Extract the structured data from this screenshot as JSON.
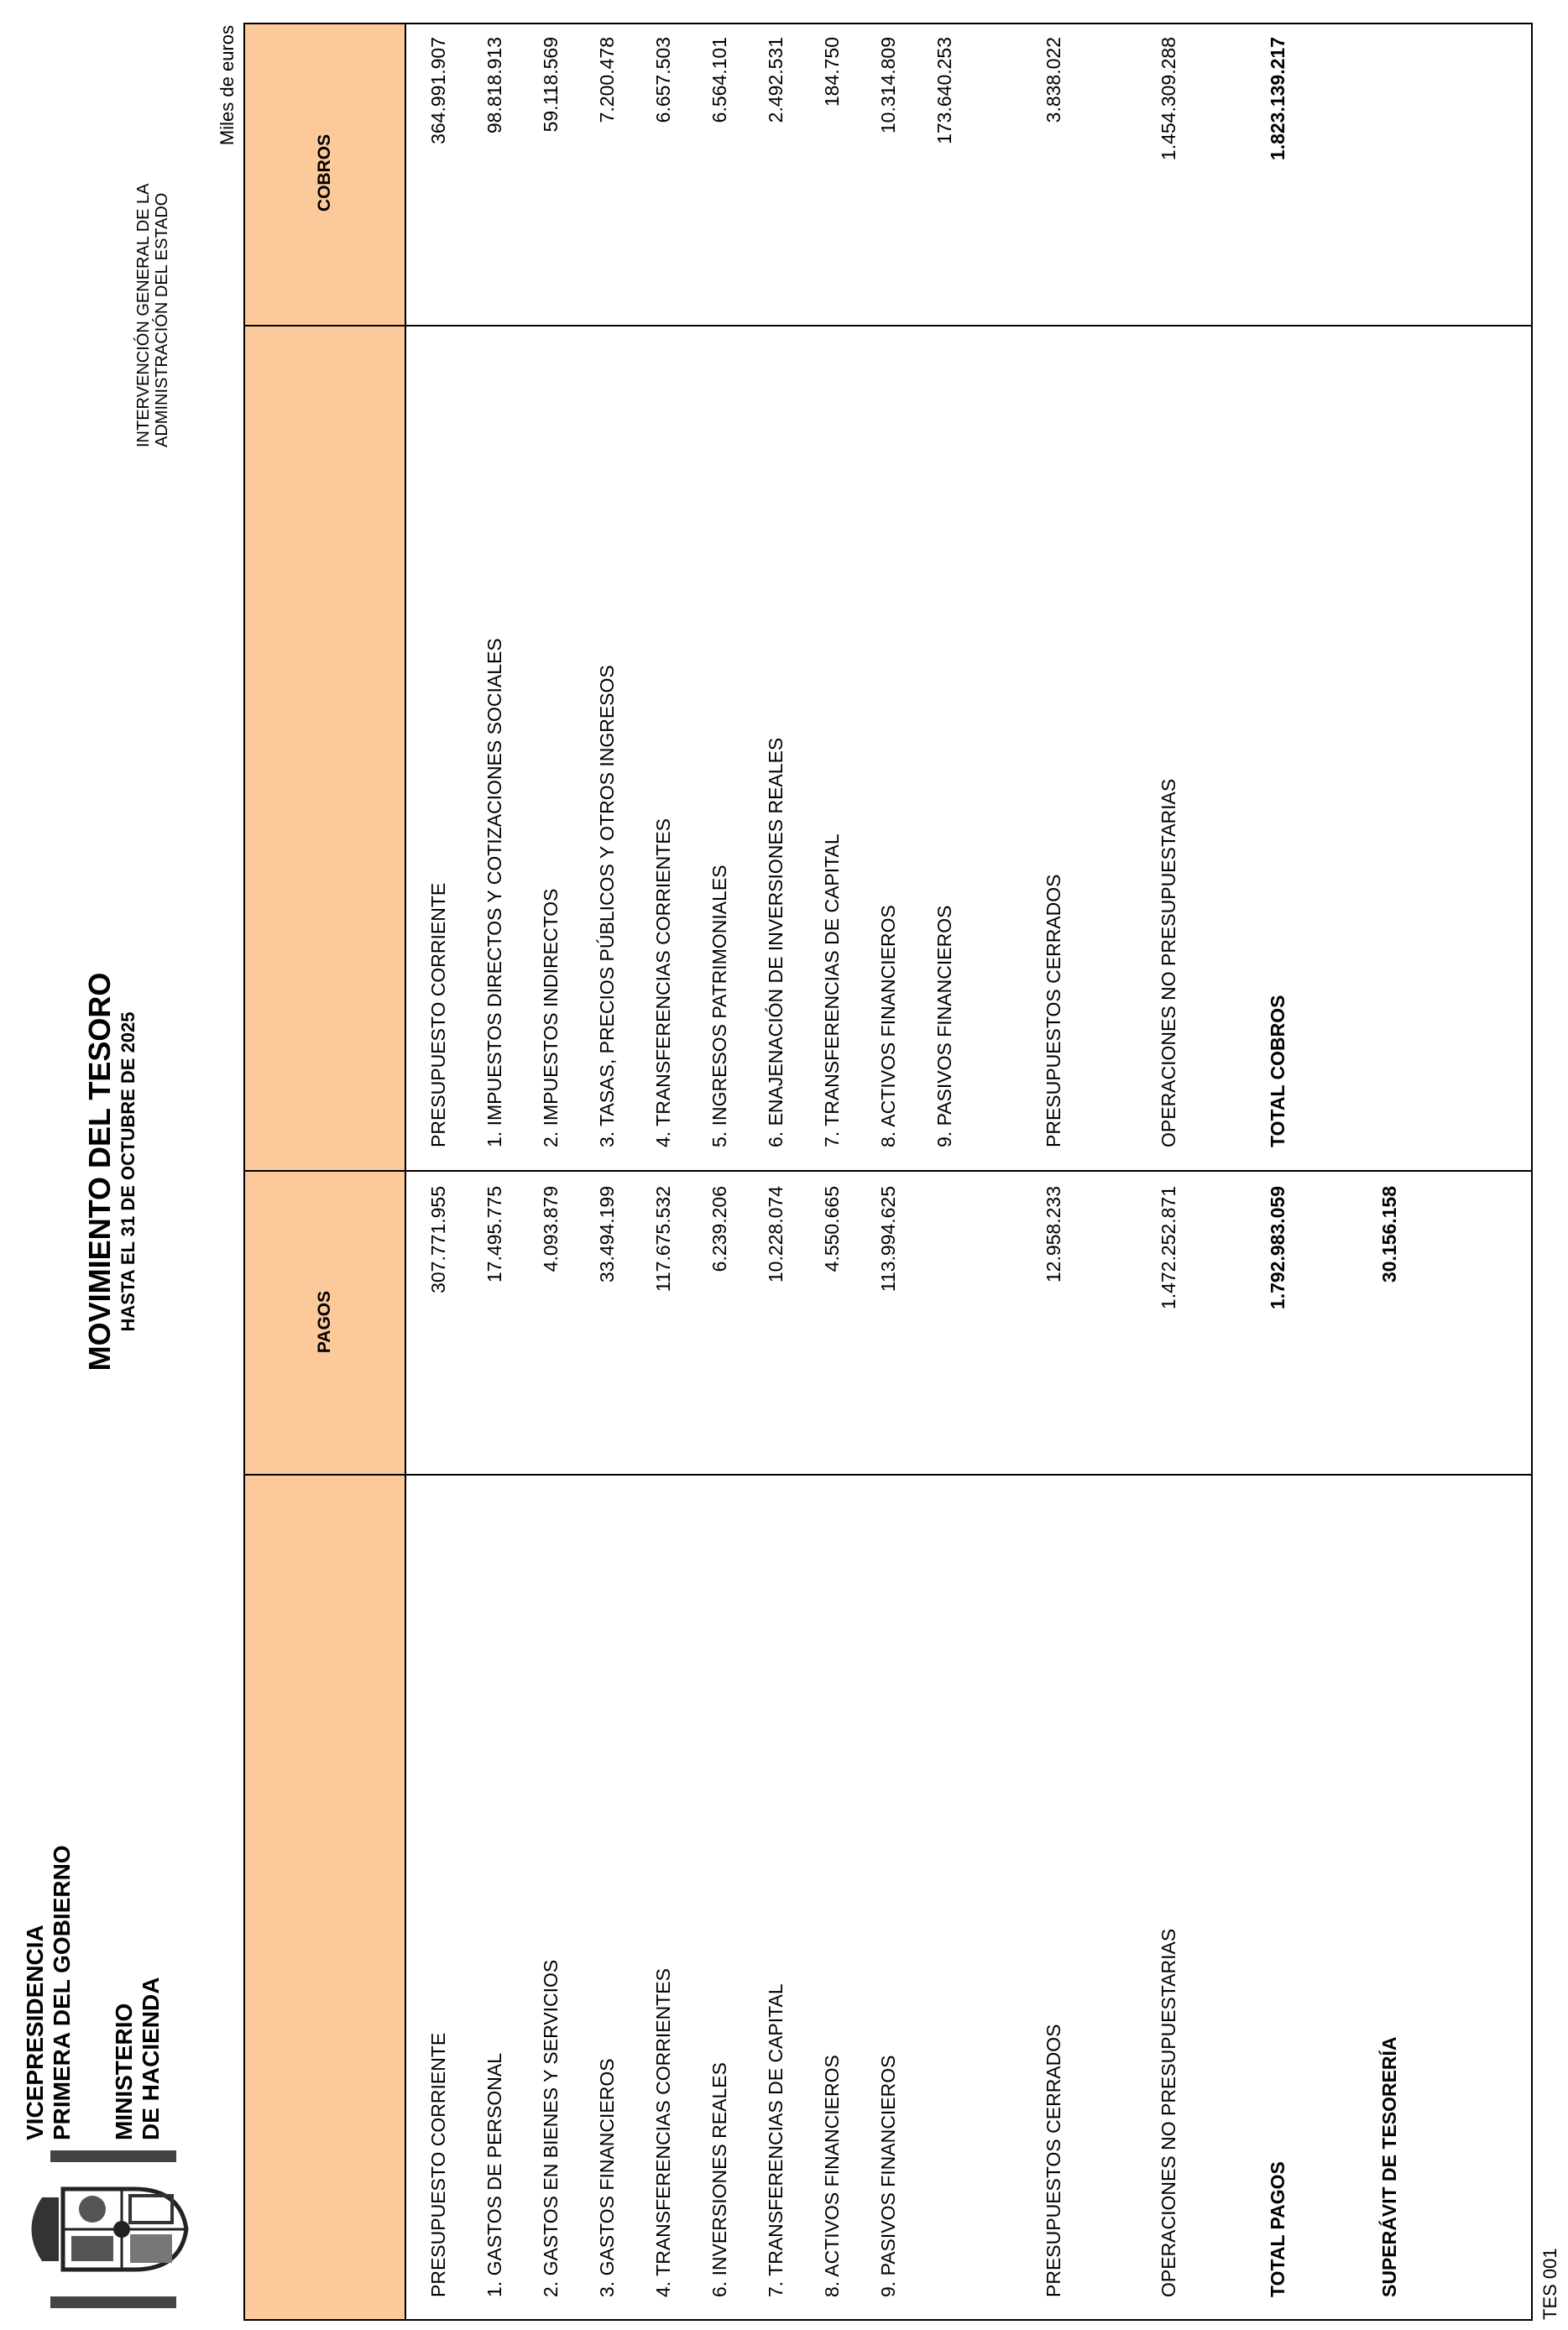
{
  "header": {
    "org_line1": "VICEPRESIDENCIA",
    "org_line2": "PRIMERA DEL GOBIERNO",
    "ministry_line1": "MINISTERIO",
    "ministry_line2": "DE HACIENDA",
    "title": "MOVIMIENTO DEL TESORO",
    "subtitle": "HASTA EL 31 DE OCTUBRE DE 2025",
    "igae_line1": "INTERVENCIÓN GENERAL DE LA",
    "igae_line2": "ADMINISTRACIÓN DEL ESTADO",
    "units": "Miles de euros",
    "logo": "coat-of-arms-of-spain"
  },
  "table": {
    "header_color": "#fcc99b",
    "pagos_header": "PAGOS",
    "cobros_header": "COBROS",
    "rows": [
      {
        "pago_label": "PRESUPUESTO CORRIENTE",
        "pago_value": "307.771.955",
        "cobro_label": "PRESUPUESTO CORRIENTE",
        "cobro_value": "364.991.907"
      },
      {
        "pago_label": "1. GASTOS DE PERSONAL",
        "pago_value": "17.495.775",
        "cobro_label": "1. IMPUESTOS DIRECTOS Y COTIZACIONES SOCIALES",
        "cobro_value": "98.818.913"
      },
      {
        "pago_label": "2. GASTOS EN BIENES Y SERVICIOS",
        "pago_value": "4.093.879",
        "cobro_label": "2. IMPUESTOS INDIRECTOS",
        "cobro_value": "59.118.569"
      },
      {
        "pago_label": "3. GASTOS FINANCIEROS",
        "pago_value": "33.494.199",
        "cobro_label": "3. TASAS, PRECIOS PÚBLICOS Y OTROS INGRESOS",
        "cobro_value": "7.200.478"
      },
      {
        "pago_label": "4. TRANSFERENCIAS CORRIENTES",
        "pago_value": "117.675.532",
        "cobro_label": "4. TRANSFERENCIAS CORRIENTES",
        "cobro_value": "6.657.503"
      },
      {
        "pago_label": "6. INVERSIONES REALES",
        "pago_value": "6.239.206",
        "cobro_label": "5. INGRESOS PATRIMONIALES",
        "cobro_value": "6.564.101"
      },
      {
        "pago_label": "7. TRANSFERENCIAS DE CAPITAL",
        "pago_value": "10.228.074",
        "cobro_label": "6. ENAJENACIÓN DE INVERSIONES REALES",
        "cobro_value": "2.492.531"
      },
      {
        "pago_label": "8. ACTIVOS FINANCIEROS",
        "pago_value": "4.550.665",
        "cobro_label": "7. TRANSFERENCIAS DE CAPITAL",
        "cobro_value": "184.750"
      },
      {
        "pago_label": "9. PASIVOS FINANCIEROS",
        "pago_value": "113.994.625",
        "cobro_label": "8. ACTIVOS FINANCIEROS",
        "cobro_value": "10.314.809"
      },
      {
        "pago_label": "",
        "pago_value": "",
        "cobro_label": "9. PASIVOS FINANCIEROS",
        "cobro_value": "173.640.253"
      },
      {
        "pago_label": "PRESUPUESTOS CERRADOS",
        "pago_value": "12.958.233",
        "cobro_label": "PRESUPUESTOS CERRADOS",
        "cobro_value": "3.838.022"
      },
      {
        "pago_label": "OPERACIONES NO PRESUPUESTARIAS",
        "pago_value": "1.472.252.871",
        "cobro_label": "OPERACIONES NO PRESUPUESTARIAS",
        "cobro_value": "1.454.309.288"
      },
      {
        "pago_label": "TOTAL PAGOS",
        "pago_value": "1.792.983.059",
        "cobro_label": "TOTAL COBROS",
        "cobro_value": "1.823.139.217"
      },
      {
        "pago_label": "SUPERÁVIT DE TESORERÍA",
        "pago_value": "30.156.158",
        "cobro_label": "",
        "cobro_value": ""
      }
    ]
  },
  "footer": {
    "code": "TES 001"
  }
}
